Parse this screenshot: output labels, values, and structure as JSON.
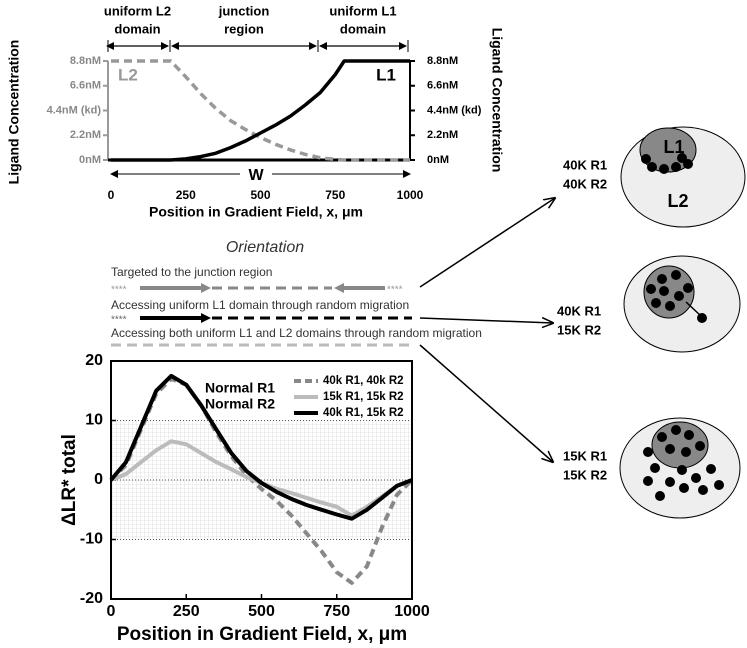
{
  "chart_data": [
    {
      "type": "line",
      "regions": [
        [
          "uniform L2",
          "domain"
        ],
        [
          "junction",
          "region"
        ],
        [
          "uniform L1",
          "domain"
        ]
      ],
      "width_label": "W",
      "xlabel": "Position in Gradient Field, x, μm",
      "ylabel": "Ligand Concentration",
      "y2label": "Ligand Concentration",
      "x": [
        0,
        100,
        200,
        250,
        300,
        350,
        400,
        450,
        500,
        550,
        600,
        650,
        700,
        750,
        780,
        900,
        1000
      ],
      "series": [
        {
          "name": "L2",
          "color": "#999999",
          "dashed": true,
          "values": [
            8.8,
            8.8,
            8.8,
            7.4,
            5.9,
            4.6,
            3.5,
            2.7,
            2.0,
            1.4,
            0.9,
            0.5,
            0.2,
            0.05,
            0,
            0,
            0
          ]
        },
        {
          "name": "L1",
          "color": "#000000",
          "dashed": false,
          "values": [
            0,
            0,
            0,
            0.1,
            0.3,
            0.6,
            1.1,
            1.7,
            2.4,
            3.1,
            3.9,
            4.9,
            6.0,
            7.6,
            8.8,
            8.8,
            8.8
          ]
        }
      ],
      "xlim": [
        0,
        1000
      ],
      "xticks": [
        0,
        250,
        500,
        750,
        1000
      ],
      "ylim": [
        0,
        8.8
      ],
      "yticks": [
        {
          "value": 0,
          "label": "0nM"
        },
        {
          "value": 2.2,
          "label": "2.2nM"
        },
        {
          "value": 4.4,
          "label": "4.4nM (kd)"
        },
        {
          "value": 6.6,
          "label": "6.6nM"
        },
        {
          "value": 8.8,
          "label": "8.8nM"
        }
      ],
      "y2lim": [
        0,
        8.8
      ],
      "y2ticks": [
        {
          "value": 0,
          "label": "0nM"
        },
        {
          "value": 2.2,
          "label": "2.2nM"
        },
        {
          "value": 4.4,
          "label": "4.4nM (kd)"
        },
        {
          "value": 6.6,
          "label": "6.6nM"
        },
        {
          "value": 8.8,
          "label": "8.8nM"
        }
      ]
    },
    {
      "type": "line",
      "xlabel": "Position in Gradient Field, x, μm",
      "ylabel": "ΔLR* total",
      "annotations": [
        "Normal R1",
        "Normal R2"
      ],
      "legend": "upper right",
      "grid": true,
      "shaded_band": [
        -10,
        10
      ],
      "x": [
        0,
        50,
        100,
        150,
        200,
        250,
        300,
        350,
        400,
        450,
        500,
        550,
        600,
        650,
        700,
        750,
        800,
        850,
        900,
        950,
        1000
      ],
      "series": [
        {
          "name": "40k R1, 40k R2",
          "color": "#888888",
          "dashed": true,
          "values": [
            0,
            2.5,
            8.5,
            14.5,
            17,
            16,
            12.5,
            8,
            4,
            0.8,
            -1.5,
            -3.5,
            -6,
            -9,
            -12,
            -15.5,
            -17.3,
            -14.5,
            -8,
            -2.5,
            0
          ]
        },
        {
          "name": "15k R1, 15k R2",
          "color": "#bbbbbb",
          "dashed": false,
          "values": [
            0,
            1,
            3,
            5,
            6.5,
            6,
            4.5,
            3,
            1.8,
            0.5,
            -0.5,
            -1.5,
            -2.2,
            -3,
            -3.8,
            -4.5,
            -6,
            -4.5,
            -2.8,
            -1,
            0
          ]
        },
        {
          "name": "40k R1, 15k R2",
          "color": "#000000",
          "dashed": false,
          "values": [
            0,
            3,
            9,
            15,
            17.5,
            16,
            12.5,
            8.5,
            4.5,
            1.5,
            -0.5,
            -2,
            -3.2,
            -4.2,
            -5,
            -5.8,
            -6.5,
            -5,
            -3,
            -1,
            0
          ]
        }
      ],
      "xlim": [
        0,
        1000
      ],
      "xticks": [
        0,
        250,
        500,
        750,
        1000
      ],
      "ylim": [
        -20,
        20
      ],
      "yticks": [
        -20,
        -10,
        0,
        10,
        20
      ]
    }
  ],
  "orientation": {
    "title": "Orientation",
    "marker": "****",
    "rows": [
      "Targeted to the junction region",
      "Accessing uniform L1 domain through random migration",
      "Accessing both uniform L1 and L2 domains through random migration"
    ]
  },
  "cells": {
    "l1": "L1",
    "l2": "L2",
    "items": [
      {
        "r1": "40K R1",
        "r2": "40K R2"
      },
      {
        "r1": "40K R1",
        "r2": "15K R2"
      },
      {
        "r1": "15K R1",
        "r2": "15K R2"
      }
    ]
  }
}
